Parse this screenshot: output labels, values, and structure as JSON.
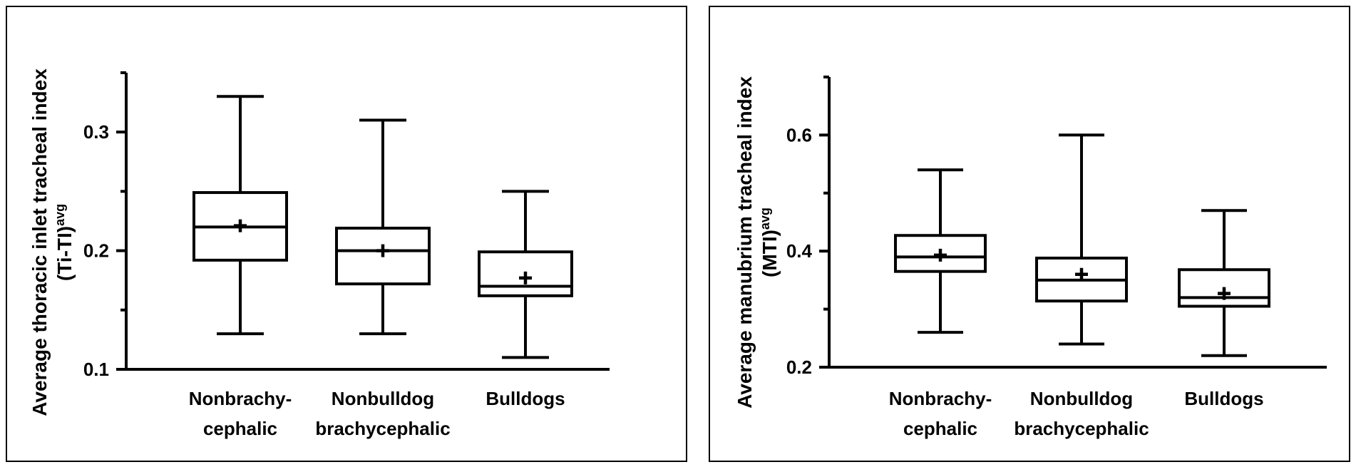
{
  "chart_data": [
    {
      "type": "box",
      "ylabel_line1": "Average thoracic inlet tracheal index",
      "ylabel_line2_main": "(Ti-TI)",
      "ylabel_line2_sup": "avg",
      "ylim": [
        0.1,
        0.35
      ],
      "yticks": [
        0.1,
        0.2,
        0.3
      ],
      "ytick_labels": [
        "0.1",
        "0.2",
        "0.3"
      ],
      "categories": [
        {
          "line1": "Nonbrachy-",
          "line2": "cephalic"
        },
        {
          "line1": "Nonbulldog",
          "line2": "brachycephalic"
        },
        {
          "line1": "Bulldogs",
          "line2": ""
        }
      ],
      "boxes": [
        {
          "min": 0.13,
          "q1": 0.192,
          "median": 0.22,
          "mean": 0.221,
          "q3": 0.249,
          "max": 0.33
        },
        {
          "min": 0.13,
          "q1": 0.172,
          "median": 0.2,
          "mean": 0.2,
          "q3": 0.219,
          "max": 0.31
        },
        {
          "min": 0.11,
          "q1": 0.162,
          "median": 0.17,
          "mean": 0.177,
          "q3": 0.199,
          "max": 0.25
        }
      ],
      "grid": false
    },
    {
      "type": "box",
      "ylabel_line1": "Average manubrium tracheal index",
      "ylabel_line2_main": "(MTI)",
      "ylabel_line2_sup": "avg",
      "ylim": [
        0.2,
        0.7
      ],
      "yticks": [
        0.2,
        0.4,
        0.6
      ],
      "ytick_labels": [
        "0.2",
        "0.4",
        "0.6"
      ],
      "categories": [
        {
          "line1": "Nonbrachy-",
          "line2": "cephalic"
        },
        {
          "line1": "Nonbulldog",
          "line2": "brachycephalic"
        },
        {
          "line1": "Bulldogs",
          "line2": ""
        }
      ],
      "boxes": [
        {
          "min": 0.26,
          "q1": 0.365,
          "median": 0.39,
          "mean": 0.393,
          "q3": 0.427,
          "max": 0.54
        },
        {
          "min": 0.24,
          "q1": 0.314,
          "median": 0.35,
          "mean": 0.36,
          "q3": 0.388,
          "max": 0.6
        },
        {
          "min": 0.22,
          "q1": 0.305,
          "median": 0.32,
          "mean": 0.327,
          "q3": 0.368,
          "max": 0.47
        }
      ],
      "grid": false
    }
  ]
}
